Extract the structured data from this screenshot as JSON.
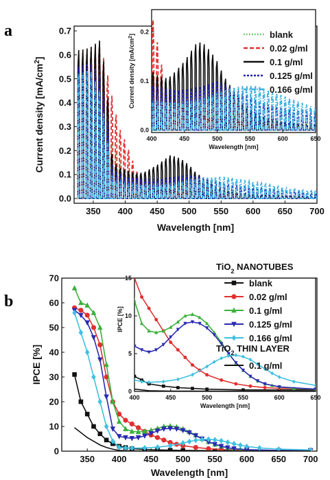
{
  "chart_data": [
    {
      "panel": "a",
      "type": "line",
      "xlabel": "Wavelength [nm]",
      "ylabel": "Current density [mA/cm",
      "ylabel_sup": "2",
      "ylabel_end": "]",
      "xlim": [
        320,
        700
      ],
      "ylim": [
        -0.02,
        0.72
      ],
      "xticks": [
        350,
        400,
        450,
        500,
        550,
        600,
        650,
        700
      ],
      "yticks": [
        0.0,
        0.1,
        0.2,
        0.3,
        0.4,
        0.5,
        0.6,
        0.7
      ],
      "ytick_labels": [
        "0.0",
        "0.1",
        "0.2",
        "0.3",
        "0.4",
        "0.5",
        "0.6",
        "0.7"
      ],
      "pulse_period_nm": 6.5,
      "legend_position": "top-right",
      "series": [
        {
          "name": "blank",
          "color": "#4cc24c",
          "style": "dot",
          "peaks": [
            [
              330,
              0.58
            ],
            [
              350,
              0.6
            ],
            [
              370,
              0.3
            ],
            [
              400,
              0.1
            ],
            [
              450,
              0.05
            ],
            [
              500,
              0.03
            ],
            [
              550,
              0.02
            ],
            [
              600,
              0.015
            ],
            [
              650,
              0.012
            ],
            [
              700,
              0.01
            ]
          ]
        },
        {
          "name": "0.02 g/ml",
          "color": "#e03030",
          "style": "dash",
          "peaks": [
            [
              330,
              0.6
            ],
            [
              345,
              0.63
            ],
            [
              360,
              0.65
            ],
            [
              370,
              0.55
            ],
            [
              380,
              0.42
            ],
            [
              390,
              0.3
            ],
            [
              400,
              0.24
            ],
            [
              410,
              0.17
            ],
            [
              420,
              0.1
            ],
            [
              450,
              0.04
            ],
            [
              500,
              0.02
            ],
            [
              550,
              0.015
            ],
            [
              650,
              0.01
            ],
            [
              700,
              0.008
            ]
          ]
        },
        {
          "name": "0.1 g/ml",
          "color": "#111111",
          "style": "solid",
          "peaks": [
            [
              330,
              0.62
            ],
            [
              345,
              0.63
            ],
            [
              360,
              0.66
            ],
            [
              370,
              0.52
            ],
            [
              380,
              0.16
            ],
            [
              390,
              0.13
            ],
            [
              400,
              0.12
            ],
            [
              410,
              0.11
            ],
            [
              420,
              0.105
            ],
            [
              430,
              0.11
            ],
            [
              440,
              0.125
            ],
            [
              450,
              0.14
            ],
            [
              460,
              0.16
            ],
            [
              470,
              0.18
            ],
            [
              480,
              0.175
            ],
            [
              490,
              0.16
            ],
            [
              500,
              0.14
            ],
            [
              510,
              0.11
            ],
            [
              520,
              0.09
            ],
            [
              530,
              0.07
            ],
            [
              540,
              0.05
            ],
            [
              550,
              0.04
            ],
            [
              560,
              0.03
            ],
            [
              580,
              0.02
            ],
            [
              620,
              0.012
            ],
            [
              700,
              0.005
            ]
          ]
        },
        {
          "name": "0.125 g/ml",
          "color": "#2020b0",
          "style": "shortdash",
          "peaks": [
            [
              330,
              0.55
            ],
            [
              345,
              0.57
            ],
            [
              360,
              0.52
            ],
            [
              370,
              0.4
            ],
            [
              380,
              0.12
            ],
            [
              400,
              0.09
            ],
            [
              420,
              0.085
            ],
            [
              440,
              0.08
            ],
            [
              460,
              0.085
            ],
            [
              480,
              0.09
            ],
            [
              500,
              0.1
            ],
            [
              520,
              0.09
            ],
            [
              540,
              0.075
            ],
            [
              560,
              0.06
            ],
            [
              580,
              0.05
            ],
            [
              600,
              0.045
            ],
            [
              620,
              0.04
            ],
            [
              640,
              0.035
            ],
            [
              700,
              0.02
            ]
          ]
        },
        {
          "name": "0.166 g/ml",
          "color": "#3ab0e0",
          "style": "dashdot",
          "peaks": [
            [
              330,
              0.52
            ],
            [
              345,
              0.54
            ],
            [
              360,
              0.45
            ],
            [
              370,
              0.3
            ],
            [
              380,
              0.08
            ],
            [
              400,
              0.06
            ],
            [
              440,
              0.055
            ],
            [
              480,
              0.065
            ],
            [
              500,
              0.075
            ],
            [
              520,
              0.085
            ],
            [
              540,
              0.09
            ],
            [
              560,
              0.09
            ],
            [
              580,
              0.08
            ],
            [
              600,
              0.07
            ],
            [
              620,
              0.06
            ],
            [
              640,
              0.05
            ],
            [
              660,
              0.04
            ],
            [
              700,
              0.03
            ]
          ]
        }
      ],
      "inset": {
        "type": "line",
        "xlabel": "Wavelength [nm]",
        "ylabel": "Current density [mA/cm",
        "ylabel_sup": "2",
        "ylabel_end": "]",
        "xlim": [
          400,
          650
        ],
        "ylim": [
          -0.005,
          0.245
        ],
        "xticks": [
          400,
          450,
          500,
          550,
          600,
          650
        ],
        "yticks": [
          0.0,
          0.1,
          0.2
        ],
        "ytick_labels": [
          "0.0",
          "0.1",
          "0.2"
        ]
      }
    },
    {
      "panel": "b",
      "type": "line",
      "xlabel": "Wavelength [nm]",
      "ylabel": "IPCE [%]",
      "xlim": [
        310,
        710
      ],
      "ylim": [
        0,
        70
      ],
      "xticks": [
        350,
        400,
        450,
        500,
        550,
        600,
        650,
        700
      ],
      "yticks": [
        0,
        10,
        20,
        30,
        40,
        50,
        60,
        70
      ],
      "legend_position": "top-right",
      "legend_headers": {
        "nanotubes_prefix": "TiO",
        "nanotubes_sub": "2",
        "nanotubes_suffix": " NANOTUBES",
        "thin_prefix": "TiO",
        "thin_sub": "2",
        "thin_suffix": " THIN LAYER"
      },
      "series": [
        {
          "name": "blank",
          "group": "nanotubes",
          "color": "#111111",
          "marker": "square",
          "x": [
            330,
            340,
            350,
            360,
            370,
            380,
            390,
            400,
            410,
            420,
            440,
            460,
            480,
            500,
            550,
            600,
            650,
            700
          ],
          "y": [
            31,
            20,
            15,
            10,
            7,
            4.5,
            3,
            2,
            1.5,
            1,
            0.7,
            0.5,
            0.4,
            0.3,
            0.2,
            0.2,
            0.2,
            0.2
          ]
        },
        {
          "name": "0.02 g/ml",
          "group": "nanotubes",
          "color": "#e03030",
          "marker": "circle",
          "x": [
            330,
            340,
            350,
            360,
            370,
            380,
            390,
            400,
            410,
            420,
            430,
            440,
            450,
            460,
            470,
            480,
            490,
            500,
            520,
            540,
            560,
            580,
            600,
            650,
            700
          ],
          "y": [
            58,
            57,
            55,
            50,
            43,
            30,
            20,
            15,
            12.5,
            11,
            9.5,
            8,
            6.5,
            5.5,
            4.5,
            3.5,
            2.8,
            2.2,
            1.5,
            1,
            0.7,
            0.5,
            0.4,
            0.3,
            0.3
          ]
        },
        {
          "name": "0.1 g/ml",
          "group": "nanotubes",
          "color": "#3cb03c",
          "marker": "triangle-up",
          "x": [
            330,
            340,
            350,
            360,
            370,
            380,
            390,
            400,
            410,
            420,
            430,
            440,
            450,
            460,
            470,
            480,
            490,
            500,
            510,
            520,
            530,
            540,
            550,
            560,
            570,
            580,
            590,
            600,
            620,
            650,
            700
          ],
          "y": [
            66,
            60,
            59,
            56,
            50,
            35,
            20,
            12,
            9,
            8,
            7.8,
            8,
            8.5,
            9.2,
            10,
            10.2,
            9.8,
            9,
            7.8,
            6.5,
            5,
            3.8,
            2.8,
            2,
            1.4,
            1,
            0.8,
            0.6,
            0.4,
            0.3,
            0.3
          ]
        },
        {
          "name": "0.125 g/ml",
          "group": "nanotubes",
          "color": "#2a2ab0",
          "marker": "triangle-down",
          "x": [
            330,
            340,
            350,
            360,
            370,
            380,
            390,
            400,
            410,
            420,
            430,
            440,
            450,
            460,
            470,
            480,
            490,
            500,
            510,
            520,
            530,
            540,
            550,
            560,
            570,
            580,
            600,
            650,
            700
          ],
          "y": [
            57,
            55,
            52,
            46,
            37,
            22,
            9,
            6,
            5.5,
            5.2,
            5.5,
            6.2,
            7.2,
            8.2,
            9,
            9.2,
            9,
            8.4,
            7.5,
            6.3,
            5,
            3.8,
            2.8,
            2,
            1.4,
            1,
            0.6,
            0.3,
            0.3
          ]
        },
        {
          "name": "0.166 g/ml",
          "group": "nanotubes",
          "color": "#40c0e0",
          "marker": "diamond",
          "x": [
            330,
            340,
            350,
            360,
            370,
            380,
            390,
            400,
            410,
            420,
            440,
            460,
            480,
            500,
            510,
            520,
            530,
            540,
            550,
            560,
            570,
            580,
            590,
            600,
            620,
            650,
            700
          ],
          "y": [
            56,
            48,
            40,
            30,
            20,
            10,
            4,
            1.5,
            1.3,
            1.2,
            1.3,
            1.6,
            2.2,
            3.3,
            3.9,
            4.4,
            4.7,
            4.8,
            4.6,
            4.2,
            3.6,
            3,
            2.4,
            1.9,
            1.3,
            0.8,
            0.5
          ]
        },
        {
          "name": "0.1 g/ml",
          "group": "thin",
          "color": "#111111",
          "marker": "none",
          "x": [
            330,
            340,
            350,
            360,
            370,
            380,
            390,
            400,
            410,
            420,
            450,
            500,
            550,
            600,
            650,
            700
          ],
          "y": [
            9.5,
            7.5,
            5.5,
            4,
            2.5,
            1.5,
            0.8,
            0.3,
            0.2,
            0.1,
            0.05,
            0.05,
            0.05,
            0.05,
            0.05,
            0.05
          ]
        }
      ],
      "inset": {
        "type": "line",
        "xlabel": "Wavelength [nm]",
        "ylabel": "IPCE [%]",
        "xlim": [
          400,
          650
        ],
        "ylim": [
          0,
          15
        ],
        "xticks": [
          400,
          450,
          500,
          550,
          600,
          650
        ],
        "yticks": [
          0,
          5,
          10,
          15
        ]
      }
    }
  ],
  "panel_labels": {
    "a": "a",
    "b": "b"
  }
}
